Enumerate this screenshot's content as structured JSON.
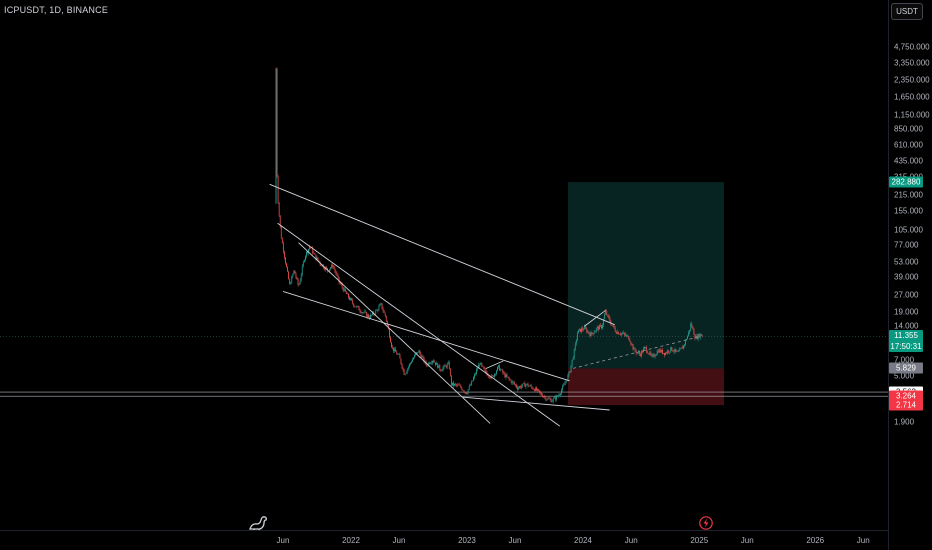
{
  "header": {
    "symbol_title": "ICPUSDT, 1D, BINANCE",
    "currency_button": "USDT"
  },
  "colors": {
    "up": "#26a69a",
    "down": "#ef5350",
    "trendline": "#d1d4dc",
    "profit_zone": "rgba(38,166,154,0.22)",
    "loss_zone": "rgba(242,54,69,0.28)",
    "current_price": "#089981",
    "entry_price": "#787b86"
  },
  "icons": {
    "logo": "tradingview-dino-icon",
    "bolt": "bolt-icon"
  },
  "chart_data": {
    "type": "candlestick",
    "title": "ICPUSDT, 1D, BINANCE",
    "y_scale": "log",
    "ylim": [
      1.6,
      6000
    ],
    "x_tick_labels": [
      "Jun",
      "2022",
      "Jun",
      "2023",
      "Jun",
      "2024",
      "Jun",
      "2025",
      "Jun",
      "2026",
      "Jun"
    ],
    "x_tick_dates": [
      "2021-06",
      "2022-01",
      "2022-06",
      "2023-01",
      "2023-06",
      "2024-01",
      "2024-06",
      "2025-01",
      "2025-06",
      "2026-01",
      "2026-06"
    ],
    "y_tick_labels": [
      "4,750.000",
      "3,350.000",
      "2,350.000",
      "1,650.000",
      "1,150.000",
      "850.000",
      "610.000",
      "435.000",
      "315.000",
      "215.000",
      "155.000",
      "105.000",
      "77.000",
      "53.000",
      "39.000",
      "27.000",
      "19.000",
      "14.000",
      "7.000",
      "5.000",
      "1.900"
    ],
    "y_tick_values": [
      4750,
      3350,
      2350,
      1650,
      1150,
      850,
      610,
      435,
      315,
      215,
      155,
      105,
      77,
      53,
      39,
      27,
      19,
      14,
      7,
      5,
      1.9
    ],
    "price_path": [
      [
        "2021-05-10",
        3000
      ],
      [
        "2021-05-12",
        400
      ],
      [
        "2021-05-17",
        180
      ],
      [
        "2021-05-25",
        95
      ],
      [
        "2021-06-08",
        55
      ],
      [
        "2021-06-22",
        33
      ],
      [
        "2021-07-06",
        45
      ],
      [
        "2021-07-20",
        32
      ],
      [
        "2021-08-08",
        60
      ],
      [
        "2021-08-25",
        75
      ],
      [
        "2021-09-10",
        60
      ],
      [
        "2021-10-01",
        50
      ],
      [
        "2021-10-20",
        45
      ],
      [
        "2021-11-05",
        50
      ],
      [
        "2021-11-25",
        35
      ],
      [
        "2021-12-15",
        28
      ],
      [
        "2022-01-10",
        22
      ],
      [
        "2022-02-05",
        19
      ],
      [
        "2022-02-28",
        17
      ],
      [
        "2022-03-20",
        19
      ],
      [
        "2022-04-05",
        22
      ],
      [
        "2022-04-20",
        17
      ],
      [
        "2022-05-10",
        9
      ],
      [
        "2022-06-01",
        7.5
      ],
      [
        "2022-06-18",
        5.2
      ],
      [
        "2022-07-10",
        6.8
      ],
      [
        "2022-08-01",
        8.4
      ],
      [
        "2022-08-25",
        6.3
      ],
      [
        "2022-09-15",
        7.0
      ],
      [
        "2022-10-10",
        5.7
      ],
      [
        "2022-11-05",
        6.4
      ],
      [
        "2022-11-12",
        4.2
      ],
      [
        "2022-12-10",
        4.0
      ],
      [
        "2022-12-30",
        3.5
      ],
      [
        "2023-01-15",
        4.3
      ],
      [
        "2023-02-10",
        6.5
      ],
      [
        "2023-02-25",
        5.5
      ],
      [
        "2023-03-20",
        4.8
      ],
      [
        "2023-04-10",
        6.0
      ],
      [
        "2023-05-01",
        5.0
      ],
      [
        "2023-06-10",
        3.9
      ],
      [
        "2023-07-05",
        4.2
      ],
      [
        "2023-08-01",
        3.8
      ],
      [
        "2023-09-10",
        3.1
      ],
      [
        "2023-09-25",
        3.0
      ],
      [
        "2023-10-15",
        3.3
      ],
      [
        "2023-11-01",
        4.0
      ],
      [
        "2023-11-20",
        5.4
      ],
      [
        "2023-12-05",
        8.5
      ],
      [
        "2023-12-15",
        12.5
      ],
      [
        "2024-01-05",
        13.5
      ],
      [
        "2024-01-25",
        11.8
      ],
      [
        "2024-02-15",
        13.5
      ],
      [
        "2024-03-01",
        14.0
      ],
      [
        "2024-03-12",
        19.0
      ],
      [
        "2024-03-28",
        15.0
      ],
      [
        "2024-04-15",
        12.5
      ],
      [
        "2024-05-05",
        12.0
      ],
      [
        "2024-05-25",
        11.0
      ],
      [
        "2024-06-10",
        8.5
      ],
      [
        "2024-06-28",
        7.8
      ],
      [
        "2024-07-15",
        9.0
      ],
      [
        "2024-08-05",
        7.3
      ],
      [
        "2024-08-25",
        8.5
      ],
      [
        "2024-09-15",
        8.0
      ],
      [
        "2024-10-05",
        8.8
      ],
      [
        "2024-10-25",
        8.0
      ],
      [
        "2024-11-12",
        9.3
      ],
      [
        "2024-11-28",
        12.0
      ],
      [
        "2024-12-06",
        14.8
      ],
      [
        "2024-12-20",
        11.0
      ],
      [
        "2025-01-05",
        11.8
      ],
      [
        "2025-01-12",
        11.355
      ]
    ],
    "trendlines": [
      {
        "from": [
          "2021-04-20",
          270
        ],
        "to": [
          "2024-04-10",
          14.5
        ]
      },
      {
        "from": [
          "2021-05-15",
          120
        ],
        "to": [
          "2023-10-20",
          1.75
        ]
      },
      {
        "from": [
          "2021-06-01",
          29
        ],
        "to": [
          "2023-11-20",
          4.5
        ]
      },
      {
        "from": [
          "2022-12-20",
          3.2
        ],
        "to": [
          "2024-03-25",
          2.45
        ]
      },
      {
        "from": [
          "2021-07-20",
          80
        ],
        "to": [
          "2023-03-15",
          1.85
        ]
      },
      {
        "from": [
          "2023-03-01",
          5.8
        ],
        "to": [
          "2023-04-25",
          6.8
        ]
      },
      {
        "from": [
          "2024-01-05",
          14.0
        ],
        "to": [
          "2024-03-12",
          19.5
        ]
      }
    ],
    "position_tool": {
      "start": "2023-11-15",
      "end": "2025-03-20",
      "entry": 5.829,
      "target": 282.88,
      "stop": 2.714,
      "dashed_from": [
        "2023-12-01",
        5.829
      ],
      "dashed_to": [
        "2025-01-05",
        11.355
      ]
    },
    "horizontal_lines": [
      11.355,
      3.563,
      3.264
    ],
    "price_badges": [
      {
        "label": "282.880",
        "value": 282.88,
        "color": "#089981"
      },
      {
        "label": "11.355",
        "sub": "17:50:31",
        "value": 11.355,
        "color": "#089981"
      },
      {
        "label": "5.829",
        "value": 5.829,
        "color": "#787b86"
      },
      {
        "label": "3.563",
        "value": 3.563,
        "color": "#ffffff",
        "text_color": "#131722"
      },
      {
        "label": "3.264",
        "value": 3.264,
        "color": "#f23645"
      },
      {
        "label": "2.714",
        "value": 2.714,
        "color": "#f23645"
      }
    ]
  }
}
